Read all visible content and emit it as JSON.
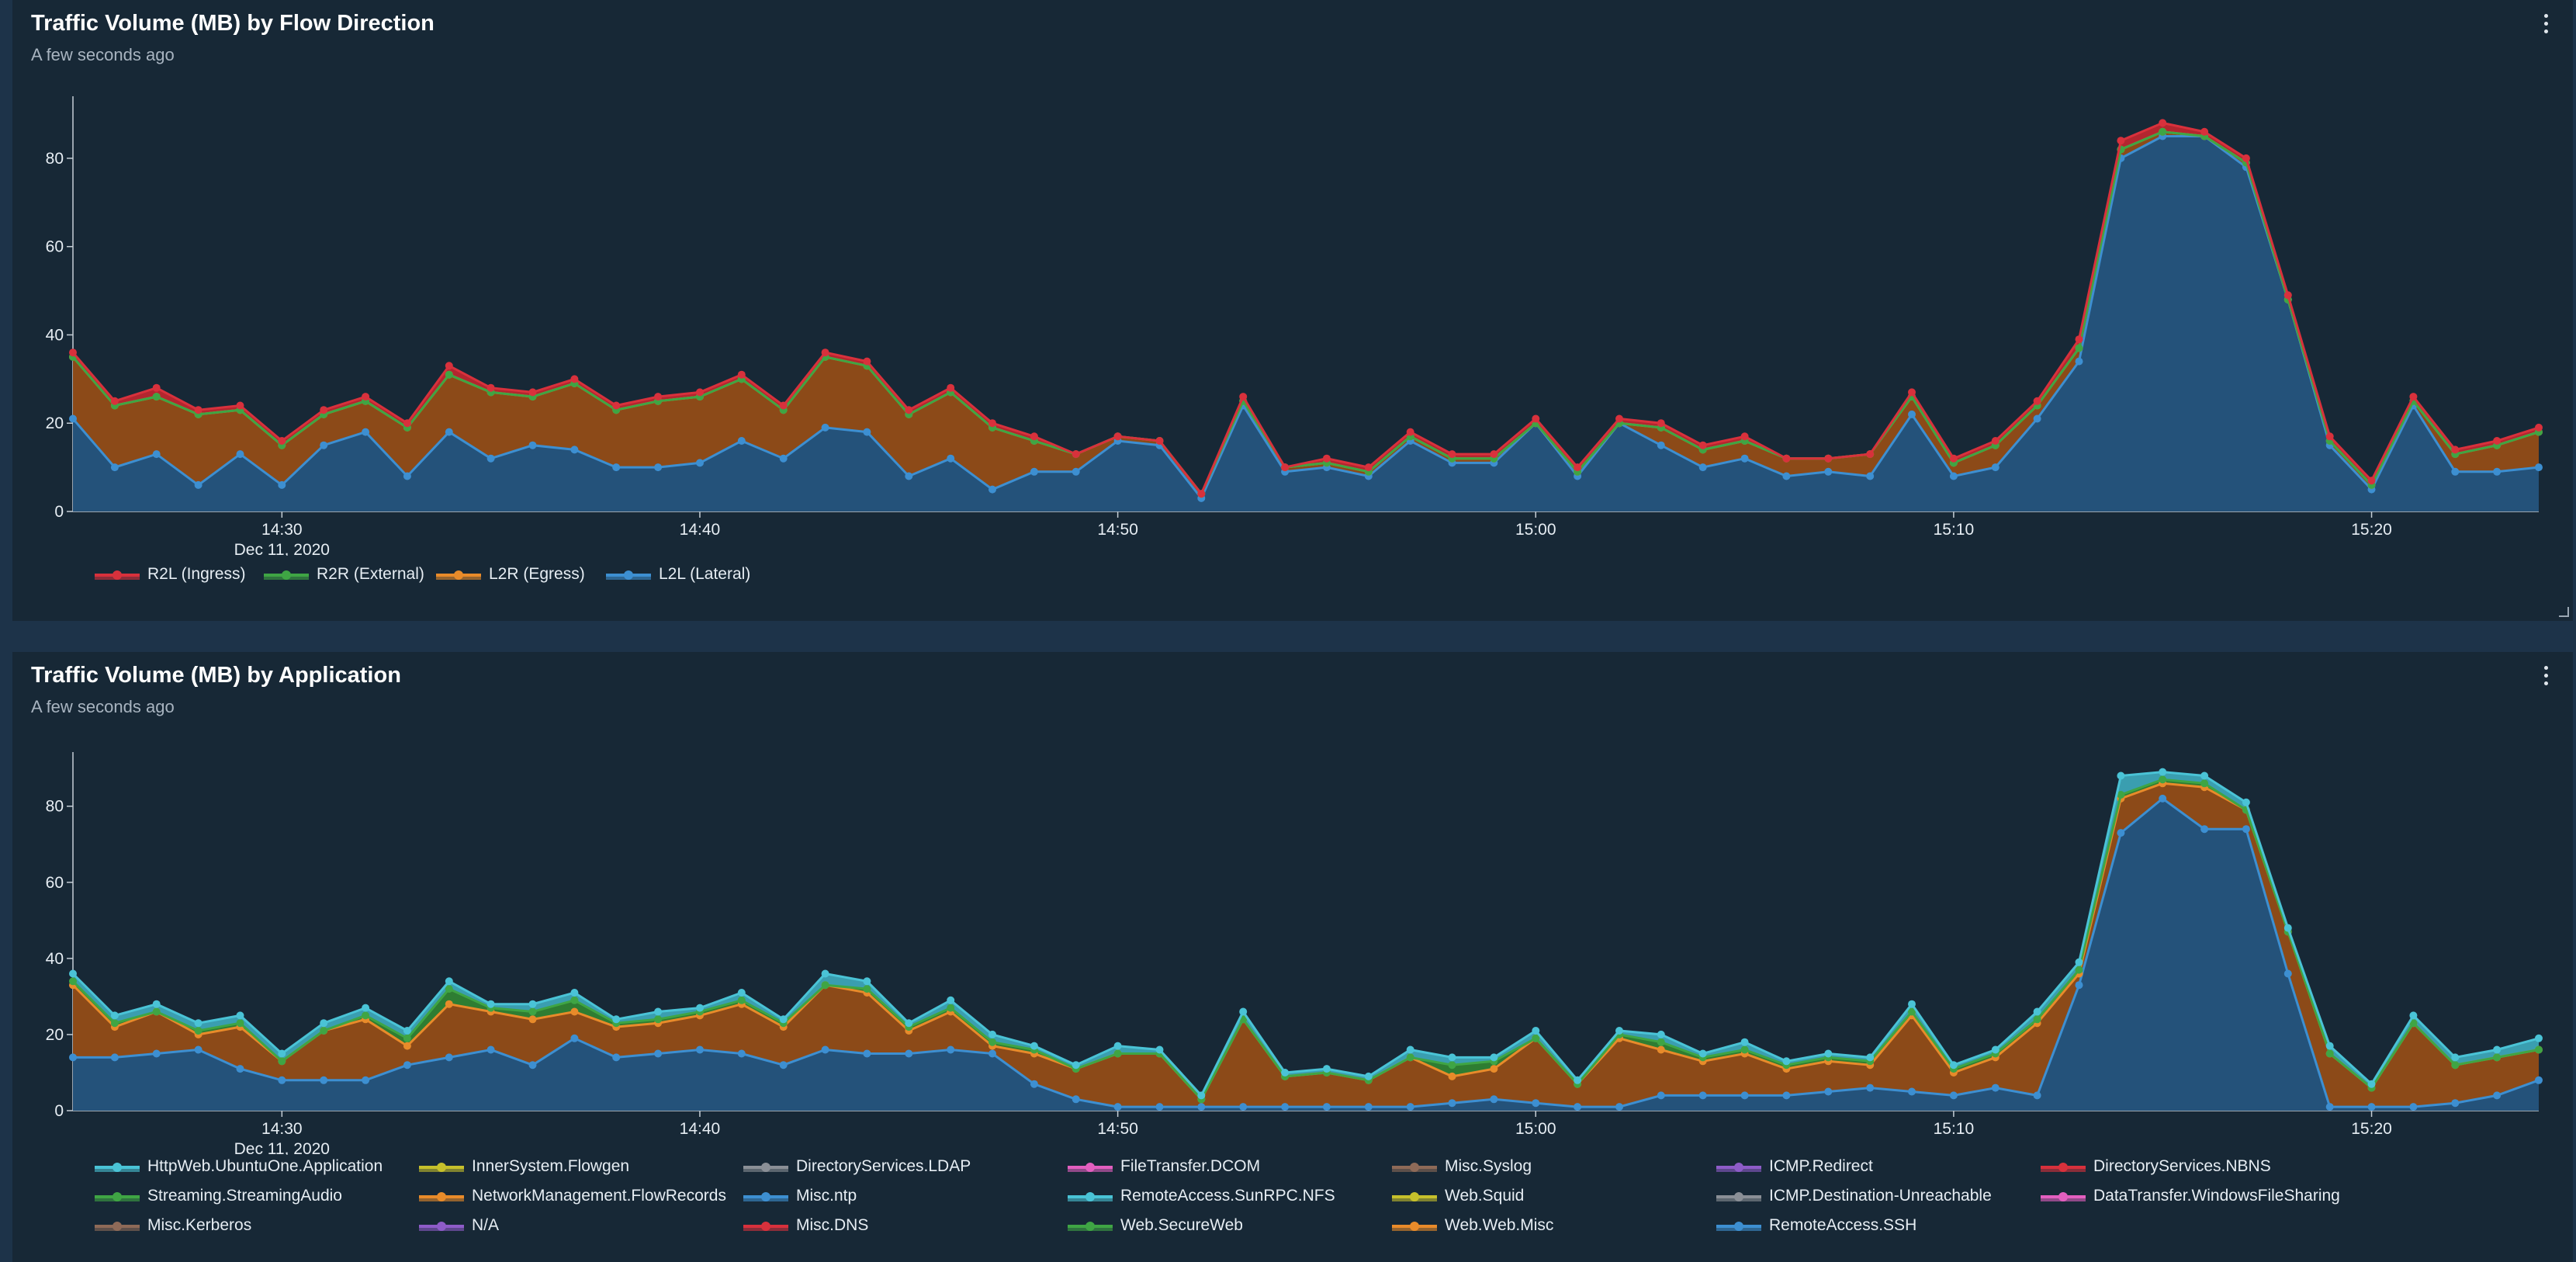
{
  "x_ticks": [
    {
      "t": 870,
      "label": "14:30",
      "sub": "Dec 11, 2020"
    },
    {
      "t": 880,
      "label": "14:40"
    },
    {
      "t": 890,
      "label": "14:50"
    },
    {
      "t": 900,
      "label": "15:00"
    },
    {
      "t": 910,
      "label": "15:10"
    },
    {
      "t": 920,
      "label": "15:20"
    }
  ],
  "y_ticks": [
    0,
    20,
    40,
    60,
    80
  ],
  "panel1": {
    "title": "Traffic Volume (MB) by Flow Direction",
    "subtitle": "A few seconds ago",
    "menu_icon": "kebab-menu-icon",
    "chart_data": {
      "type": "area",
      "stacked": true,
      "xlabel": "",
      "ylabel": "",
      "ylim": [
        0,
        93
      ],
      "xlim": [
        "14:25",
        "15:24"
      ],
      "x": [
        "14:25",
        "14:26",
        "14:27",
        "14:28",
        "14:29",
        "14:30",
        "14:31",
        "14:32",
        "14:33",
        "14:34",
        "14:35",
        "14:36",
        "14:37",
        "14:38",
        "14:39",
        "14:40",
        "14:41",
        "14:42",
        "14:43",
        "14:44",
        "14:45",
        "14:46",
        "14:47",
        "14:48",
        "14:49",
        "14:50",
        "14:51",
        "14:52",
        "14:53",
        "14:54",
        "14:55",
        "14:56",
        "14:57",
        "14:58",
        "14:59",
        "15:00",
        "15:01",
        "15:02",
        "15:03",
        "15:04",
        "15:05",
        "15:06",
        "15:07",
        "15:08",
        "15:09",
        "15:10",
        "15:11",
        "15:12",
        "15:13",
        "15:14",
        "15:15",
        "15:16",
        "15:17",
        "15:18",
        "15:19",
        "15:20",
        "15:21",
        "15:22",
        "15:23",
        "15:24"
      ],
      "series": [
        {
          "name": "L2L (Lateral)",
          "color": "#3d8fd1",
          "fill": "#24527a",
          "values": [
            21,
            10,
            13,
            6,
            13,
            6,
            15,
            18,
            8,
            18,
            12,
            15,
            14,
            10,
            10,
            11,
            16,
            12,
            19,
            18,
            8,
            12,
            5,
            9,
            9,
            16,
            15,
            3,
            24,
            9,
            10,
            8,
            16,
            11,
            11,
            20,
            8,
            20,
            15,
            10,
            12,
            8,
            9,
            8,
            22,
            8,
            10,
            21,
            34,
            80,
            85,
            85,
            78,
            48,
            15,
            5,
            24,
            9,
            9,
            10
          ]
        },
        {
          "name": "L2R (Egress)",
          "color": "#e88b2a",
          "fill": "#8c4a18",
          "values": [
            14,
            14,
            13,
            16,
            10,
            9,
            7,
            7,
            11,
            13,
            15,
            11,
            15,
            13,
            15,
            15,
            14,
            11,
            16,
            15,
            14,
            15,
            14,
            7,
            4,
            1,
            1,
            1,
            1,
            1,
            1,
            1,
            1,
            1,
            1,
            0,
            1,
            0,
            4,
            4,
            4,
            4,
            3,
            5,
            4,
            3,
            5,
            3,
            3,
            2,
            1,
            0,
            1,
            0,
            1,
            1,
            1,
            4,
            6,
            8
          ]
        },
        {
          "name": "R2R (External)",
          "color": "#3fa544",
          "fill": "#2e7d32",
          "values": [
            0,
            0,
            0,
            0,
            0,
            0,
            0,
            0,
            0,
            0,
            0,
            0,
            0,
            0,
            0,
            0,
            0,
            0,
            0,
            0,
            0,
            0,
            0,
            0,
            0,
            0,
            0,
            0,
            0,
            0,
            0,
            0,
            0,
            0,
            0,
            0,
            0,
            0,
            0,
            0,
            0,
            0,
            0,
            0,
            0,
            0,
            0,
            0,
            0,
            0,
            0,
            0,
            0,
            0,
            0,
            0,
            0,
            0,
            0,
            0
          ]
        },
        {
          "name": "R2L (Ingress)",
          "color": "#d8313c",
          "fill": "#b3262f",
          "values": [
            1,
            1,
            2,
            1,
            1,
            1,
            1,
            1,
            1,
            2,
            1,
            1,
            1,
            1,
            1,
            1,
            1,
            1,
            1,
            1,
            1,
            1,
            1,
            1,
            0,
            0,
            0,
            0,
            1,
            0,
            1,
            1,
            1,
            1,
            1,
            1,
            1,
            1,
            1,
            1,
            1,
            0,
            0,
            0,
            1,
            1,
            1,
            1,
            2,
            2,
            2,
            1,
            1,
            1,
            1,
            1,
            1,
            1,
            1,
            1
          ]
        }
      ]
    }
  },
  "panel2": {
    "title": "Traffic Volume (MB) by Application",
    "subtitle": "A few seconds ago",
    "menu_icon": "kebab-menu-icon",
    "chart_data": {
      "type": "area",
      "stacked": true,
      "xlabel": "",
      "ylabel": "",
      "ylim": [
        0,
        93
      ],
      "xlim": [
        "14:25",
        "15:24"
      ],
      "series": [
        {
          "name": "RemoteAccess.SSH",
          "color": "#3d8fd1",
          "fill": "#24527a",
          "values": [
            14,
            14,
            15,
            16,
            11,
            8,
            8,
            8,
            12,
            14,
            16,
            12,
            19,
            14,
            15,
            16,
            15,
            12,
            16,
            15,
            15,
            16,
            15,
            7,
            3,
            1,
            1,
            1,
            1,
            1,
            1,
            1,
            1,
            2,
            3,
            2,
            1,
            1,
            4,
            4,
            4,
            4,
            5,
            6,
            5,
            4,
            6,
            4,
            33,
            73,
            82,
            74,
            74,
            36,
            1,
            1,
            1,
            2,
            4,
            8
          ]
        },
        {
          "name": "Web.Web.Misc",
          "color": "#e88b2a",
          "fill": "#8c4a18",
          "values": [
            19,
            8,
            11,
            4,
            11,
            5,
            13,
            16,
            5,
            14,
            10,
            12,
            7,
            8,
            8,
            9,
            13,
            10,
            17,
            16,
            6,
            10,
            2,
            8,
            8,
            14,
            14,
            2,
            23,
            8,
            9,
            7,
            13,
            7,
            8,
            17,
            6,
            18,
            12,
            9,
            11,
            7,
            8,
            6,
            20,
            6,
            8,
            19,
            3,
            9,
            4,
            11,
            5,
            11,
            14,
            5,
            22,
            10,
            10,
            8
          ]
        },
        {
          "name": "Web.SecureWeb",
          "color": "#3fa544",
          "fill": "#2e7d32",
          "values": [
            1,
            1,
            0,
            1,
            1,
            0,
            0,
            1,
            2,
            4,
            1,
            2,
            3,
            1,
            1,
            1,
            1,
            1,
            0,
            1,
            1,
            1,
            1,
            1,
            0,
            0,
            0,
            0,
            0,
            0,
            0,
            0,
            0,
            3,
            2,
            0,
            0,
            1,
            2,
            1,
            1,
            1,
            1,
            1,
            1,
            1,
            1,
            1,
            1,
            1,
            1,
            1,
            0,
            0,
            0,
            0,
            0,
            0,
            0,
            0
          ]
        },
        {
          "name": "HttpWeb.UbuntuOne.Application",
          "color": "#4ac3d6",
          "fill": "#3a9eb0",
          "values": [
            2,
            2,
            2,
            2,
            2,
            2,
            2,
            2,
            2,
            2,
            1,
            2,
            2,
            1,
            2,
            1,
            2,
            1,
            3,
            2,
            1,
            2,
            2,
            1,
            1,
            2,
            1,
            1,
            2,
            1,
            1,
            1,
            2,
            2,
            1,
            2,
            1,
            1,
            2,
            1,
            2,
            1,
            1,
            1,
            2,
            1,
            1,
            2,
            2,
            5,
            2,
            2,
            2,
            1,
            2,
            1,
            2,
            2,
            2,
            3
          ]
        }
      ],
      "legend_entries": [
        {
          "name": "HttpWeb.UbuntuOne.Application",
          "color": "#4ac3d6"
        },
        {
          "name": "InnerSystem.Flowgen",
          "color": "#c6c02b"
        },
        {
          "name": "DirectoryServices.LDAP",
          "color": "#8a8f96"
        },
        {
          "name": "FileTransfer.DCOM",
          "color": "#e35fbf"
        },
        {
          "name": "Misc.Syslog",
          "color": "#8e6a58"
        },
        {
          "name": "ICMP.Redirect",
          "color": "#8e5cc8"
        },
        {
          "name": "DirectoryServices.NBNS",
          "color": "#d8313c"
        },
        {
          "name": "Streaming.StreamingAudio",
          "color": "#3fa544"
        },
        {
          "name": "NetworkManagement.FlowRecords",
          "color": "#e88b2a"
        },
        {
          "name": "Misc.ntp",
          "color": "#3d8fd1"
        },
        {
          "name": "RemoteAccess.SunRPC.NFS",
          "color": "#4ac3d6"
        },
        {
          "name": "Web.Squid",
          "color": "#c6c02b"
        },
        {
          "name": "ICMP.Destination-Unreachable",
          "color": "#8a8f96"
        },
        {
          "name": "DataTransfer.WindowsFileSharing",
          "color": "#e35fbf"
        },
        {
          "name": "Misc.Kerberos",
          "color": "#8e6a58"
        },
        {
          "name": "N/A",
          "color": "#8e5cc8"
        },
        {
          "name": "Misc.DNS",
          "color": "#d8313c"
        },
        {
          "name": "Web.SecureWeb",
          "color": "#3fa544"
        },
        {
          "name": "Web.Web.Misc",
          "color": "#e88b2a"
        },
        {
          "name": "RemoteAccess.SSH",
          "color": "#3d8fd1"
        }
      ]
    }
  },
  "legend1_order": [
    "R2L (Ingress)",
    "R2R (External)",
    "L2R (Egress)",
    "L2L (Lateral)"
  ]
}
